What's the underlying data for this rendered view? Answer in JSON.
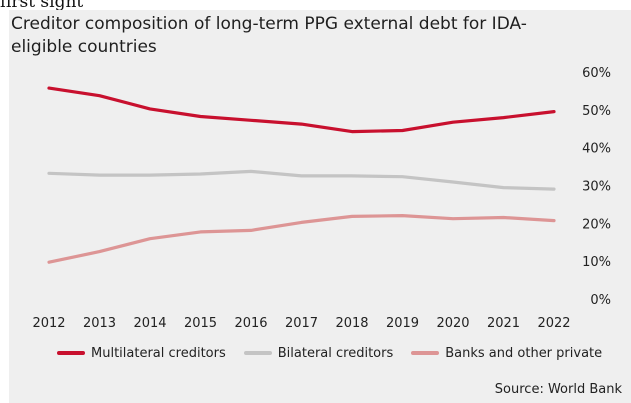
{
  "top_fragment": "first sight",
  "chart_data": {
    "type": "line",
    "title": "Creditor composition of long-term PPG external debt for IDA-eligible countries",
    "x": [
      "2012",
      "2013",
      "2014",
      "2015",
      "2016",
      "2017",
      "2018",
      "2019",
      "2020",
      "2021",
      "2022"
    ],
    "ylim": [
      0,
      60
    ],
    "yticks": [
      "0%",
      "10%",
      "20%",
      "30%",
      "40%",
      "50%",
      "60%"
    ],
    "grid": false,
    "legend_position": "bottom",
    "series": [
      {
        "name": "Multilateral creditors",
        "color": "#c8102e",
        "values": [
          56,
          54,
          50.5,
          48.5,
          47.5,
          46.5,
          44.5,
          44.8,
          47,
          48.2,
          49.8
        ]
      },
      {
        "name": "Bilateral creditors",
        "color": "#c4c4c4",
        "values": [
          33.5,
          33,
          33,
          33.3,
          34,
          32.8,
          32.8,
          32.6,
          31.2,
          29.7,
          29.3
        ]
      },
      {
        "name": "Banks and other private",
        "color": "#dd9595",
        "values": [
          10,
          12.8,
          16.2,
          18,
          18.4,
          20.5,
          22.1,
          22.3,
          21.5,
          21.8,
          21
        ]
      }
    ],
    "source": "Source: World Bank"
  }
}
